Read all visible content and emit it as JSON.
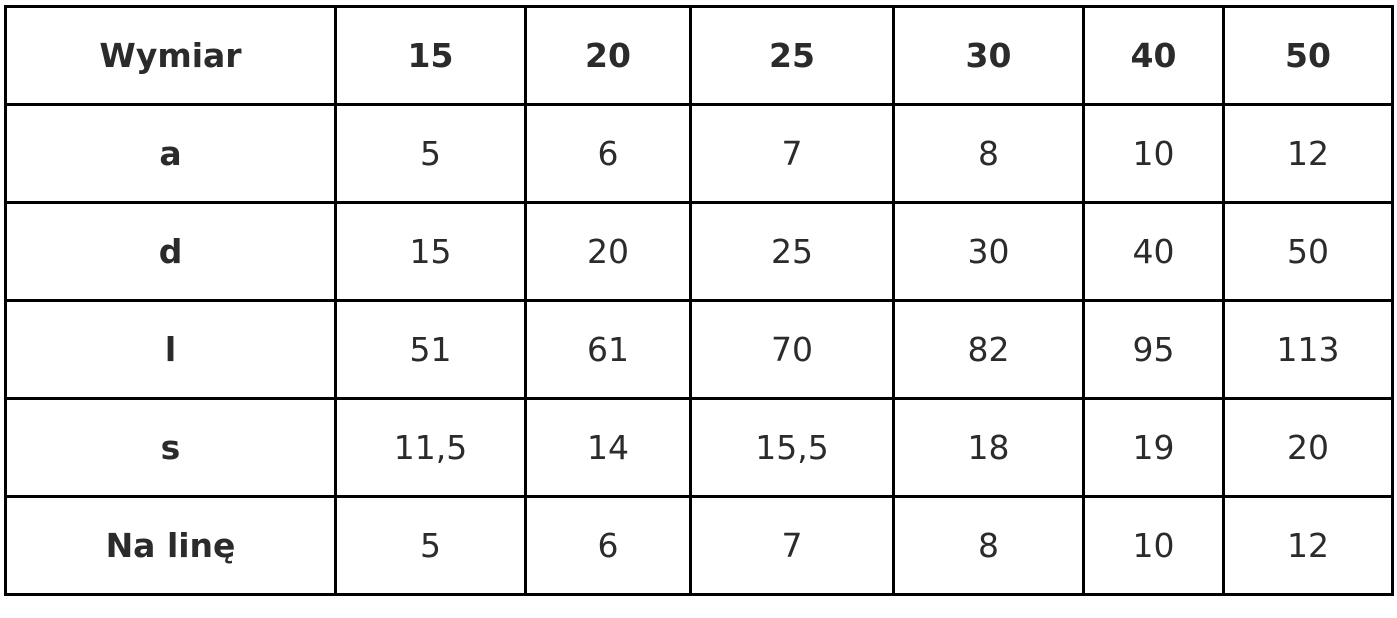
{
  "table": {
    "headers": [
      "Wymiar",
      "15",
      "20",
      "25",
      "30",
      "40",
      "50"
    ],
    "rows": [
      [
        "a",
        "5",
        "6",
        "7",
        "8",
        "10",
        "12"
      ],
      [
        "d",
        "15",
        "20",
        "25",
        "30",
        "40",
        "50"
      ],
      [
        "l",
        "51",
        "61",
        "70",
        "82",
        "95",
        "113"
      ],
      [
        "s",
        "11,5",
        "14",
        "15,5",
        "18",
        "19",
        "20"
      ],
      [
        "Na linę",
        "5",
        "6",
        "7",
        "8",
        "10",
        "12"
      ]
    ]
  }
}
